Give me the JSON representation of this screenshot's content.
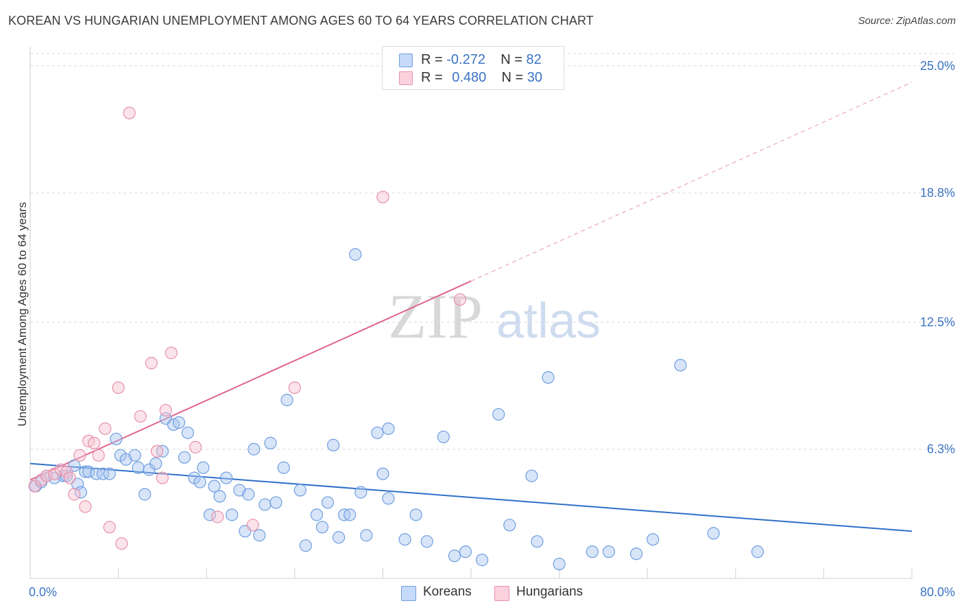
{
  "title": "KOREAN VS HUNGARIAN UNEMPLOYMENT AMONG AGES 60 TO 64 YEARS CORRELATION CHART",
  "source": "Source: ZipAtlas.com",
  "watermark": {
    "zip": "ZIP",
    "atlas": "atlas"
  },
  "legend": {
    "koreans": {
      "r_label": "R =",
      "r_value": "-0.272",
      "n_label": "N =",
      "n_value": "82",
      "color": "#a9c6f0"
    },
    "hungarians": {
      "r_label": "R =",
      "r_value": "0.480",
      "n_label": "N =",
      "n_value": "30",
      "color": "#f5b8ca"
    }
  },
  "bottom_legend": [
    "Koreans",
    "Hungarians"
  ],
  "chart_data": {
    "type": "scatter",
    "ylabel": "Unemployment Among Ages 60 to 64 years",
    "x_ticks_labels": [
      "0.0%",
      "80.0%"
    ],
    "y_tick_labels": [
      "6.3%",
      "12.5%",
      "18.8%",
      "25.0%"
    ],
    "y_ticks": [
      6.3,
      12.5,
      18.8,
      25.0
    ],
    "xlim": [
      0,
      80
    ],
    "ylim": [
      0,
      25.6
    ],
    "grid": true,
    "colors": {
      "koreans_fill": "#a9c6f0",
      "koreans_stroke": "#6f9ee0",
      "koreans_line": "#2f6fc9",
      "hungarians_fill": "#f7c0d0",
      "hungarians_stroke": "#e890ab",
      "hungarians_line": "#e0648f"
    },
    "series": [
      {
        "name": "Koreans",
        "trend": {
          "x0": 0,
          "y0": 5.6,
          "x1": 80,
          "y1": 2.3
        },
        "points": [
          [
            0.5,
            4.5
          ],
          [
            1.0,
            4.7
          ],
          [
            1.5,
            5.0
          ],
          [
            2.2,
            4.9
          ],
          [
            3.0,
            5.0
          ],
          [
            3.3,
            5.0
          ],
          [
            4.0,
            5.5
          ],
          [
            4.3,
            4.6
          ],
          [
            4.6,
            4.2
          ],
          [
            5.0,
            5.2
          ],
          [
            5.3,
            5.2
          ],
          [
            6.0,
            5.1
          ],
          [
            6.6,
            5.1
          ],
          [
            7.2,
            5.1
          ],
          [
            7.8,
            6.8
          ],
          [
            8.2,
            6.0
          ],
          [
            8.7,
            5.8
          ],
          [
            9.5,
            6.0
          ],
          [
            9.8,
            5.4
          ],
          [
            10.4,
            4.1
          ],
          [
            10.8,
            5.3
          ],
          [
            11.4,
            5.6
          ],
          [
            12.0,
            6.2
          ],
          [
            12.3,
            7.8
          ],
          [
            13.0,
            7.5
          ],
          [
            13.5,
            7.6
          ],
          [
            14.0,
            5.9
          ],
          [
            14.3,
            7.1
          ],
          [
            14.9,
            4.9
          ],
          [
            15.4,
            4.7
          ],
          [
            15.7,
            5.4
          ],
          [
            16.3,
            3.1
          ],
          [
            16.7,
            4.5
          ],
          [
            17.2,
            4.0
          ],
          [
            17.8,
            4.9
          ],
          [
            18.3,
            3.1
          ],
          [
            19.0,
            4.3
          ],
          [
            19.5,
            2.3
          ],
          [
            19.8,
            4.1
          ],
          [
            20.3,
            6.3
          ],
          [
            20.8,
            2.1
          ],
          [
            21.3,
            3.6
          ],
          [
            21.8,
            6.6
          ],
          [
            22.3,
            3.7
          ],
          [
            23.0,
            5.4
          ],
          [
            23.3,
            8.7
          ],
          [
            24.5,
            4.3
          ],
          [
            25.0,
            1.6
          ],
          [
            26.0,
            3.1
          ],
          [
            26.5,
            2.5
          ],
          [
            27.0,
            3.7
          ],
          [
            27.5,
            6.5
          ],
          [
            28.0,
            2.0
          ],
          [
            28.5,
            3.1
          ],
          [
            29.0,
            3.1
          ],
          [
            30.0,
            4.2
          ],
          [
            30.5,
            2.1
          ],
          [
            31.5,
            7.1
          ],
          [
            32.0,
            5.1
          ],
          [
            32.5,
            7.3
          ],
          [
            34.0,
            1.9
          ],
          [
            35.0,
            3.1
          ],
          [
            36.0,
            1.8
          ],
          [
            37.5,
            6.9
          ],
          [
            38.5,
            1.1
          ],
          [
            39.5,
            1.3
          ],
          [
            41.0,
            0.9
          ],
          [
            42.5,
            8.0
          ],
          [
            43.5,
            2.6
          ],
          [
            45.5,
            5.0
          ],
          [
            46.0,
            1.8
          ],
          [
            47.0,
            9.8
          ],
          [
            48.0,
            0.7
          ],
          [
            51.0,
            1.3
          ],
          [
            52.5,
            1.3
          ],
          [
            55.0,
            1.2
          ],
          [
            56.5,
            1.9
          ],
          [
            59.0,
            10.4
          ],
          [
            62.0,
            2.2
          ],
          [
            66.0,
            1.3
          ],
          [
            29.5,
            15.8
          ],
          [
            32.5,
            3.9
          ]
        ]
      },
      {
        "name": "Hungarians",
        "trend": {
          "x0": 0,
          "y0": 4.8,
          "x1": 80,
          "y1": 24.2,
          "solid_until_x": 40
        },
        "points": [
          [
            0.4,
            4.5
          ],
          [
            1.0,
            4.8
          ],
          [
            1.5,
            5.0
          ],
          [
            2.2,
            5.1
          ],
          [
            2.8,
            5.3
          ],
          [
            3.3,
            5.2
          ],
          [
            3.6,
            4.9
          ],
          [
            4.0,
            4.1
          ],
          [
            4.5,
            6.0
          ],
          [
            5.0,
            3.5
          ],
          [
            5.3,
            6.7
          ],
          [
            5.8,
            6.6
          ],
          [
            6.2,
            6.0
          ],
          [
            6.8,
            7.3
          ],
          [
            7.2,
            2.5
          ],
          [
            8.0,
            9.3
          ],
          [
            8.3,
            1.7
          ],
          [
            9.0,
            22.7
          ],
          [
            10.0,
            7.9
          ],
          [
            11.0,
            10.5
          ],
          [
            11.5,
            6.2
          ],
          [
            12.0,
            4.9
          ],
          [
            12.3,
            8.2
          ],
          [
            12.8,
            11.0
          ],
          [
            15.0,
            6.4
          ],
          [
            17.0,
            3.0
          ],
          [
            20.2,
            2.6
          ],
          [
            24.0,
            9.3
          ],
          [
            32.0,
            18.6
          ],
          [
            39.0,
            13.6
          ]
        ]
      }
    ]
  }
}
